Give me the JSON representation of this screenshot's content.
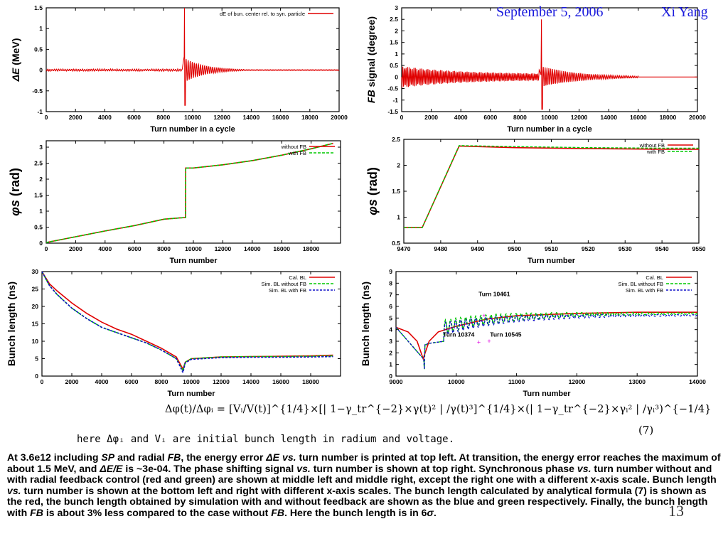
{
  "header": {
    "date": "September 5, 2006",
    "author": "Xi Yang"
  },
  "colors": {
    "red": "#e00000",
    "green": "#00c800",
    "blue": "#1010c8",
    "header_blue": "#1a1adc",
    "marker_magenta": "#e000e0"
  },
  "charts": [
    {
      "id": "energy",
      "type": "line",
      "ylabel_prefix": "ΔE",
      "ylabel_rest": " (MeV)",
      "xlabel": "Turn number in a cycle",
      "xlim": [
        0,
        20000
      ],
      "ylim": [
        -1,
        1.5
      ],
      "xticks": [
        "0",
        "2000",
        "4000",
        "6000",
        "8000",
        "10000",
        "12000",
        "14000",
        "16000",
        "18000",
        "20000"
      ],
      "yticks": [
        "-1",
        "-0.5",
        "0",
        "0.5",
        "1",
        "1.5"
      ],
      "legend": [
        "dE of bun. center rel. to syn. particle"
      ],
      "legend_pos": "top-right"
    },
    {
      "id": "fb_signal",
      "type": "line",
      "ylabel_prefix": "FB",
      "ylabel_rest": " signal (degree)",
      "xlabel": "Turn number in a cycle",
      "xlim": [
        0,
        20000
      ],
      "ylim": [
        -1.5,
        3
      ],
      "xticks": [
        "0",
        "2000",
        "4000",
        "6000",
        "8000",
        "10000",
        "12000",
        "14000",
        "16000",
        "18000",
        "20000"
      ],
      "yticks": [
        "-1.5",
        "-1",
        "-0.5",
        "0",
        "0.5",
        "1",
        "1.5",
        "2",
        "2.5",
        "3"
      ],
      "legend": [],
      "legend_pos": "none"
    },
    {
      "id": "phis_full",
      "type": "line",
      "ylabel_prefix": "φs",
      "ylabel_rest": " (rad)",
      "xlabel": "Turn number",
      "xlim": [
        0,
        20000
      ],
      "ylim": [
        0,
        3.2
      ],
      "xticks": [
        "0",
        "2000",
        "4000",
        "6000",
        "8000",
        "10000",
        "12000",
        "14000",
        "16000",
        "18000"
      ],
      "yticks": [
        "0",
        "0.5",
        "1",
        "1.5",
        "2",
        "2.5",
        "3"
      ],
      "legend": [
        "without FB",
        "with FB"
      ],
      "legend_pos": "top-right"
    },
    {
      "id": "phis_zoom",
      "type": "line",
      "ylabel_prefix": "φs",
      "ylabel_rest": " (rad)",
      "xlabel": "Turn number",
      "xlim": [
        9470,
        9550
      ],
      "ylim": [
        0.5,
        2.5
      ],
      "xticks": [
        "9470",
        "9480",
        "9490",
        "9500",
        "9510",
        "9520",
        "9530",
        "9540",
        "9550"
      ],
      "yticks": [
        "0.5",
        "1",
        "1.5",
        "2",
        "2.5"
      ],
      "legend": [
        "without FB",
        "with FB"
      ],
      "legend_pos": "top-right"
    },
    {
      "id": "bl_full",
      "type": "line",
      "ylabel_prefix": "",
      "ylabel_rest": "Bunch length (ns)",
      "xlabel": "Turn number",
      "xlim": [
        0,
        20000
      ],
      "ylim": [
        0,
        30
      ],
      "xticks": [
        "0",
        "2000",
        "4000",
        "6000",
        "8000",
        "10000",
        "12000",
        "14000",
        "16000",
        "18000"
      ],
      "yticks": [
        "0",
        "5",
        "10",
        "15",
        "20",
        "25",
        "30"
      ],
      "legend": [
        "Cal. BL",
        "Sim. BL without FB",
        "Sim. BL with FB"
      ],
      "legend_pos": "top-right"
    },
    {
      "id": "bl_zoom",
      "type": "line",
      "ylabel_prefix": "",
      "ylabel_rest": "Bunch length (ns)",
      "xlabel": "Turn number",
      "xlim": [
        9000,
        14000
      ],
      "ylim": [
        0,
        9
      ],
      "xticks": [
        "9000",
        "10000",
        "11000",
        "12000",
        "13000",
        "14000"
      ],
      "yticks": [
        "0",
        "1",
        "2",
        "3",
        "4",
        "5",
        "6",
        "7",
        "8",
        "9"
      ],
      "legend": [
        "Cal. BL",
        "Sim. BL without FB",
        "Sim. BL with FB"
      ],
      "legend_pos": "top-right",
      "annotations": [
        "Turn 10461",
        "Turn 10374",
        "Turn 10545"
      ]
    }
  ],
  "chart_data": [
    {
      "type": "line",
      "title": "",
      "xlabel": "Turn number in a cycle",
      "ylabel": "ΔE (MeV)",
      "xlim": [
        0,
        20000
      ],
      "ylim": [
        -1,
        1.5
      ],
      "grid": false,
      "legend": "top-right",
      "series": [
        {
          "name": "dE of bun. center rel. to syn. particle",
          "x": [
            0,
            2000,
            4000,
            6000,
            8000,
            9000,
            9300,
            9400,
            9450,
            9500,
            9600,
            9800,
            10000,
            10500,
            11000,
            12000,
            13000,
            14000,
            16000,
            18000,
            20000
          ],
          "y": [
            0,
            0,
            0,
            0,
            0.02,
            0.03,
            0.08,
            0.3,
            1.5,
            -0.85,
            -0.3,
            0.25,
            -0.15,
            0.12,
            -0.05,
            0.03,
            0.01,
            0,
            0,
            0,
            0
          ]
        }
      ]
    },
    {
      "type": "line",
      "title": "",
      "xlabel": "Turn number in a cycle",
      "ylabel": "FB signal (degree)",
      "xlim": [
        0,
        20000
      ],
      "ylim": [
        -1.5,
        3
      ],
      "grid": false,
      "legend": "none",
      "series": [
        {
          "x": [
            0,
            1000,
            3000,
            6000,
            8000,
            9000,
            9400,
            9450,
            9500,
            9600,
            10000,
            11000,
            12000,
            14000,
            16000,
            18000,
            20000
          ],
          "y": [
            0.2,
            0.3,
            0.15,
            0.08,
            0.05,
            0.1,
            0.4,
            2.5,
            -1.4,
            -0.5,
            0.3,
            0.15,
            0.05,
            0.02,
            0,
            0,
            0
          ]
        }
      ]
    },
    {
      "type": "line",
      "title": "",
      "xlabel": "Turn number",
      "ylabel": "φs (rad)",
      "xlim": [
        0,
        20000
      ],
      "ylim": [
        0,
        3.2
      ],
      "grid": false,
      "legend": "top-right",
      "series": [
        {
          "name": "without FB",
          "x": [
            0,
            2000,
            4000,
            6000,
            8000,
            9400,
            9470,
            9480,
            10000,
            12000,
            14000,
            16000,
            18000,
            19500
          ],
          "y": [
            0.02,
            0.2,
            0.38,
            0.55,
            0.75,
            0.8,
            0.8,
            2.35,
            2.35,
            2.45,
            2.58,
            2.75,
            2.95,
            3.12
          ]
        },
        {
          "name": "with FB",
          "x": [
            0,
            2000,
            4000,
            6000,
            8000,
            9400,
            9470,
            9480,
            10000,
            12000,
            14000,
            16000,
            18000,
            19500
          ],
          "y": [
            0.02,
            0.2,
            0.38,
            0.55,
            0.75,
            0.8,
            0.8,
            2.35,
            2.35,
            2.45,
            2.58,
            2.75,
            2.95,
            3.12
          ]
        }
      ]
    },
    {
      "type": "line",
      "title": "",
      "xlabel": "Turn number",
      "ylabel": "φs (rad)",
      "xlim": [
        9470,
        9550
      ],
      "ylim": [
        0.5,
        2.5
      ],
      "grid": false,
      "legend": "top-right",
      "series": [
        {
          "name": "without FB",
          "x": [
            9470,
            9475,
            9485,
            9500,
            9520,
            9540,
            9550
          ],
          "y": [
            0.8,
            0.8,
            2.37,
            2.34,
            2.32,
            2.31,
            2.31
          ]
        },
        {
          "name": "with FB",
          "x": [
            9470,
            9475,
            9485,
            9500,
            9520,
            9540,
            9550
          ],
          "y": [
            0.8,
            0.8,
            2.38,
            2.36,
            2.34,
            2.33,
            2.33
          ]
        }
      ]
    },
    {
      "type": "line",
      "title": "",
      "xlabel": "Turn number",
      "ylabel": "Bunch length (ns)",
      "xlim": [
        0,
        20000
      ],
      "ylim": [
        0,
        30
      ],
      "grid": false,
      "legend": "top-right",
      "series": [
        {
          "name": "Cal. BL",
          "x": [
            0,
            500,
            1000,
            2000,
            3000,
            4000,
            5000,
            6000,
            7000,
            8000,
            9000,
            9450,
            9600,
            10000,
            12000,
            14000,
            16000,
            18000,
            19500
          ],
          "y": [
            30,
            26.5,
            24.5,
            21,
            18,
            15.5,
            13.5,
            12,
            10,
            8,
            5.5,
            2,
            4,
            5,
            5.5,
            5.6,
            5.7,
            5.8,
            6
          ]
        },
        {
          "name": "Sim. BL without FB",
          "x": [
            0,
            500,
            1000,
            2000,
            3000,
            4000,
            5000,
            6000,
            7000,
            8000,
            9000,
            9450,
            9600,
            10000,
            12000,
            14000,
            16000,
            18000,
            19500
          ],
          "y": [
            30,
            26,
            23.5,
            19.5,
            16.5,
            14,
            12.5,
            11,
            9.5,
            7.5,
            5,
            1.5,
            4,
            5,
            5.5,
            5.6,
            5.6,
            5.7,
            5.8
          ]
        },
        {
          "name": "Sim. BL with FB",
          "x": [
            0,
            500,
            1000,
            2000,
            3000,
            4000,
            5000,
            6000,
            7000,
            8000,
            9000,
            9450,
            9600,
            10000,
            12000,
            14000,
            16000,
            18000,
            19500
          ],
          "y": [
            30,
            26,
            23.5,
            19.5,
            16.5,
            14,
            12.5,
            11,
            9.5,
            7.5,
            5,
            1,
            3.8,
            4.8,
            5.3,
            5.4,
            5.4,
            5.5,
            5.6
          ]
        }
      ]
    },
    {
      "type": "line",
      "title": "",
      "xlabel": "Turn number",
      "ylabel": "Bunch length (ns)",
      "xlim": [
        9000,
        14000
      ],
      "ylim": [
        0,
        9
      ],
      "grid": false,
      "legend": "top-right",
      "series": [
        {
          "name": "Cal. BL",
          "x": [
            9000,
            9200,
            9350,
            9450,
            9550,
            9700,
            10000,
            10500,
            11000,
            12000,
            13000,
            14000
          ],
          "y": [
            4.2,
            3.8,
            3,
            1.5,
            3,
            3.8,
            4.3,
            4.9,
            5.2,
            5.4,
            5.5,
            5.5
          ]
        },
        {
          "name": "Sim. BL without FB",
          "x": [
            9000,
            9200,
            9400,
            9470,
            9600,
            9800,
            10000,
            10374,
            10461,
            10545,
            11000,
            12000,
            13000,
            14000
          ],
          "y": [
            4.2,
            3.8,
            2.8,
            1.4,
            2.9,
            3.0,
            4.2,
            2.9,
            5.2,
            3.0,
            5.3,
            5.6,
            5.6,
            5.6
          ]
        },
        {
          "name": "Sim. BL with FB",
          "x": [
            9000,
            9200,
            9400,
            9470,
            9600,
            9800,
            10000,
            10374,
            10461,
            10545,
            11000,
            12000,
            13000,
            14000
          ],
          "y": [
            4.2,
            3.8,
            2.8,
            0.6,
            2.7,
            2.9,
            4.0,
            2.8,
            5.0,
            2.9,
            5.0,
            5.3,
            5.3,
            5.3
          ]
        }
      ]
    }
  ],
  "equation": {
    "main": "Δφ(t)/Δφᵢ = [Vᵢ/V(t)]^{1/4}×[| 1−γ_tr^{−2}×γ(t)² | /γ(t)³]^{1/4}×(| 1−γ_tr^{−2}×γᵢ² | /γᵢ³)^{−1/4}",
    "number": "(7)",
    "note": "here Δφᵢ and Vᵢ are initial bunch length in radium and voltage."
  },
  "caption": {
    "t01": "At 3.6e12 including ",
    "t02": "SP",
    "t03": " and radial ",
    "t04": "FB",
    "t05": ", the energy error ",
    "t06": "ΔE",
    "t07": " vs.",
    "t08": " turn number is printed at top left.  At transition, the energy error reaches the maximum of about 1.5 MeV, and ",
    "t09": "ΔE/E",
    "t10": " is ~3e-04.  The phase shifting signal ",
    "t11": "vs.",
    "t12": " turn number is shown at top right.  Synchronous phase ",
    "t13": "vs.",
    "t14": " turn number without and with radial feedback control (red and green) are shown at middle left and middle right, except the right one with a different x-axis scale.  Bunch length ",
    "t15": "vs.",
    "t16": " turn number is shown at the bottom left and right with different x-axis scales.  The bunch length calculated by analytical formula (7) is shown as the red, the bunch length obtained by simulation with and without feedback are shown as the blue and green respectively.  Finally, the bunch length with ",
    "t17": "FB",
    "t18": " is about 3% less compared to the case without ",
    "t19": "FB",
    "t20": ".  Here the bunch length is in 6",
    "t21": "σ",
    "t22": "."
  },
  "page_number": "13"
}
